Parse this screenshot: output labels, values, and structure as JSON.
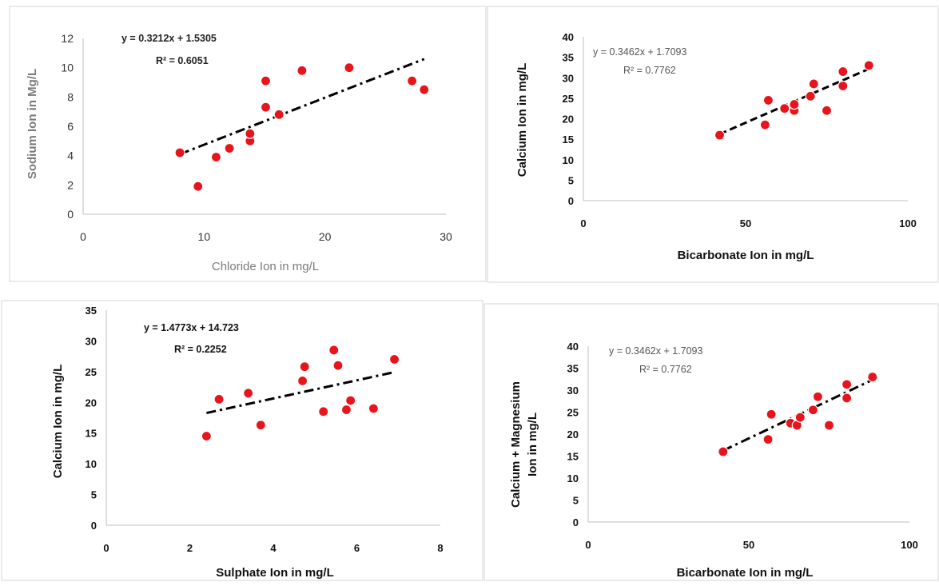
{
  "chart_data": [
    {
      "type": "scatter",
      "xlabel": "Chloride Ion in mg/L",
      "ylabel": "Sodium Ion in Mg/L",
      "xlim": [
        0,
        30
      ],
      "ylim": [
        0,
        12
      ],
      "xticks": [
        "0",
        "10",
        "20",
        "30"
      ],
      "yticks": [
        "0",
        "2",
        "4",
        "6",
        "8",
        "10",
        "12"
      ],
      "points": [
        {
          "x": 8.0,
          "y": 4.2
        },
        {
          "x": 9.5,
          "y": 1.9
        },
        {
          "x": 11.0,
          "y": 3.9
        },
        {
          "x": 12.1,
          "y": 4.5
        },
        {
          "x": 13.8,
          "y": 5.0
        },
        {
          "x": 13.8,
          "y": 5.5
        },
        {
          "x": 15.1,
          "y": 9.1
        },
        {
          "x": 15.1,
          "y": 7.3
        },
        {
          "x": 16.2,
          "y": 6.8
        },
        {
          "x": 18.1,
          "y": 9.8
        },
        {
          "x": 22.0,
          "y": 10.0
        },
        {
          "x": 27.2,
          "y": 9.1
        },
        {
          "x": 28.2,
          "y": 8.5
        }
      ],
      "trendline": {
        "slope": 0.3212,
        "intercept": 1.5305,
        "x_from": 8.0,
        "x_to": 28.2,
        "style": "dash-dot"
      },
      "equation": "y = 0.3212x + 1.5305",
      "r2": "R² = 0.6051"
    },
    {
      "type": "scatter",
      "xlabel": "Bicarbonate Ion in mg/L",
      "ylabel": "Calcium Ion in mg/L",
      "xlim": [
        0,
        100
      ],
      "ylim": [
        0,
        40
      ],
      "xticks": [
        "0",
        "50",
        "100"
      ],
      "yticks": [
        "0",
        "5",
        "10",
        "15",
        "20",
        "25",
        "30",
        "35",
        "40"
      ],
      "points": [
        {
          "x": 42,
          "y": 16.0
        },
        {
          "x": 56,
          "y": 18.5
        },
        {
          "x": 57,
          "y": 24.5
        },
        {
          "x": 62,
          "y": 22.5
        },
        {
          "x": 65,
          "y": 22.0
        },
        {
          "x": 65,
          "y": 23.5
        },
        {
          "x": 70,
          "y": 25.5
        },
        {
          "x": 71,
          "y": 28.5
        },
        {
          "x": 75,
          "y": 22.0
        },
        {
          "x": 80,
          "y": 28.0
        },
        {
          "x": 80,
          "y": 31.5
        },
        {
          "x": 88,
          "y": 33.0
        }
      ],
      "trendline": {
        "slope": 0.3462,
        "intercept": 1.7093,
        "x_from": 42,
        "x_to": 88,
        "style": "dash"
      },
      "equation": "y = 0.3462x + 1.7093",
      "r2": "R² = 0.7762"
    },
    {
      "type": "scatter",
      "xlabel": "Sulphate Ion in mg/L",
      "ylabel": "Calcium Ion in mg/L",
      "xlim": [
        0,
        8
      ],
      "ylim": [
        0,
        35
      ],
      "xticks": [
        "0",
        "2",
        "4",
        "6",
        "8"
      ],
      "yticks": [
        "0",
        "5",
        "10",
        "15",
        "20",
        "25",
        "30",
        "35"
      ],
      "points": [
        {
          "x": 2.4,
          "y": 14.5
        },
        {
          "x": 2.7,
          "y": 20.5
        },
        {
          "x": 3.4,
          "y": 21.5
        },
        {
          "x": 3.7,
          "y": 16.3
        },
        {
          "x": 4.7,
          "y": 23.5
        },
        {
          "x": 4.75,
          "y": 25.8
        },
        {
          "x": 5.2,
          "y": 18.5
        },
        {
          "x": 5.45,
          "y": 28.5
        },
        {
          "x": 5.55,
          "y": 26.0
        },
        {
          "x": 5.75,
          "y": 18.8
        },
        {
          "x": 5.85,
          "y": 20.3
        },
        {
          "x": 6.4,
          "y": 19.0
        },
        {
          "x": 6.9,
          "y": 27.0
        }
      ],
      "trendline": {
        "slope": 1.4773,
        "intercept": 14.723,
        "x_from": 2.4,
        "x_to": 6.9,
        "style": "dash-dot"
      },
      "equation": "y = 1.4773x + 14.723",
      "r2": "R² = 0.2252"
    },
    {
      "type": "scatter",
      "xlabel": "Bicarbonate Ion in mg/L",
      "ylabel": [
        "Calcium + Magnesium",
        "Ion in mg/L"
      ],
      "xlim": [
        0,
        100
      ],
      "ylim": [
        0,
        40
      ],
      "xticks": [
        "0",
        "50",
        "100"
      ],
      "yticks": [
        "0",
        "5",
        "10",
        "15",
        "20",
        "25",
        "30",
        "35",
        "40"
      ],
      "points": [
        {
          "x": 42,
          "y": 16.0
        },
        {
          "x": 56,
          "y": 18.8
        },
        {
          "x": 57,
          "y": 24.5
        },
        {
          "x": 63,
          "y": 22.5
        },
        {
          "x": 65,
          "y": 22.0
        },
        {
          "x": 66,
          "y": 23.8
        },
        {
          "x": 70,
          "y": 25.5
        },
        {
          "x": 71.5,
          "y": 28.5
        },
        {
          "x": 75,
          "y": 22.0
        },
        {
          "x": 80.5,
          "y": 28.2
        },
        {
          "x": 80.5,
          "y": 31.3
        },
        {
          "x": 88.5,
          "y": 33.0
        }
      ],
      "trendline": {
        "slope": 0.3462,
        "intercept": 1.7093,
        "x_from": 42,
        "x_to": 88.5,
        "style": "dash-dot"
      },
      "equation": "y = 0.3462x + 1.7093",
      "r2": "R² = 0.7762"
    }
  ],
  "colors": {
    "marker_fill": "#e8141c",
    "marker_edge": "#ffffff",
    "trendline": "#000000",
    "axis": "#bfbfbf",
    "panel_border": "#d6d6d6"
  }
}
